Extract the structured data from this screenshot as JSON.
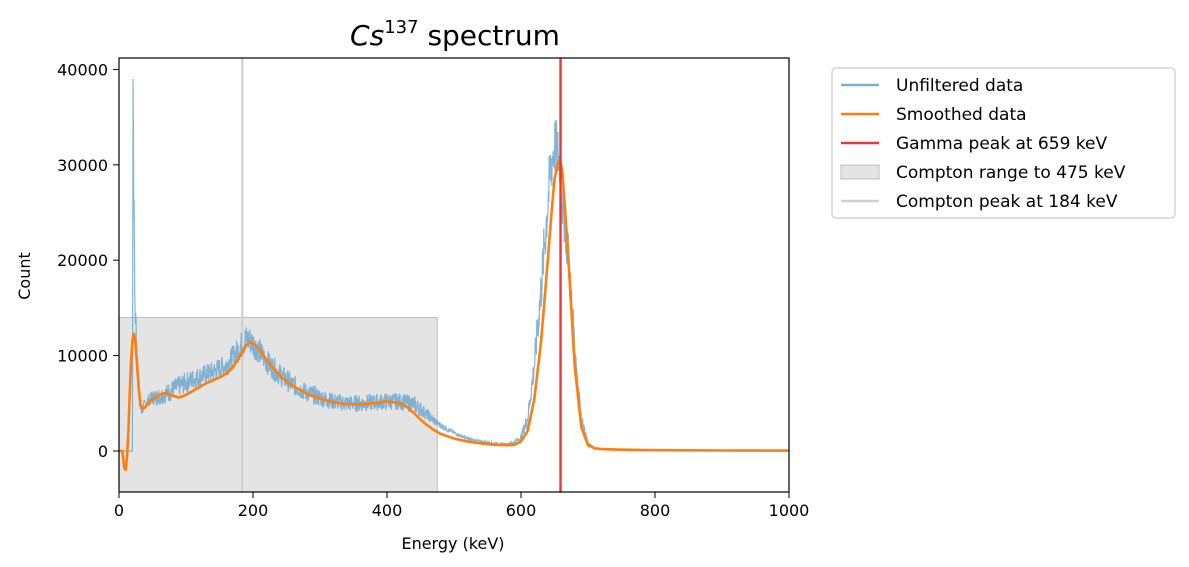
{
  "chart_data": {
    "type": "line",
    "title": {
      "main": "Cs",
      "superscript": "137",
      "rest": " spectrum"
    },
    "xlabel": "Energy (keV)",
    "ylabel": "Count",
    "xlim": [
      0,
      1000
    ],
    "ylim": [
      -4300,
      41200
    ],
    "xticks": [
      0,
      200,
      400,
      600,
      800,
      1000
    ],
    "xtick_labels": [
      "0",
      "200",
      "400",
      "600",
      "800",
      "1000"
    ],
    "yticks": [
      0,
      10000,
      20000,
      30000,
      40000
    ],
    "ytick_labels": [
      "0",
      "10000",
      "20000",
      "30000",
      "40000"
    ],
    "grid": false,
    "legend_position": "outside-right",
    "colors": {
      "unfiltered": "#7fb1cf",
      "unfiltered_band": "#6fa7cf",
      "smoothed": "#ff7f0e",
      "gamma": "#e8373a",
      "compton_range": "#d9d9d9",
      "compton_peak": "#cfcfcf"
    },
    "series": [
      {
        "name": "Unfiltered data",
        "style": "noisy",
        "x": [
          0,
          5,
          10,
          15,
          18,
          20,
          21,
          22,
          23,
          24,
          25,
          26,
          27,
          28,
          29,
          30,
          31,
          32,
          33,
          34,
          35,
          37,
          40,
          45,
          50,
          60,
          70,
          80,
          90,
          100,
          120,
          140,
          160,
          170,
          180,
          185,
          190,
          195,
          200,
          210,
          220,
          240,
          260,
          280,
          300,
          320,
          340,
          360,
          380,
          400,
          420,
          440,
          450,
          460,
          475,
          500,
          520,
          540,
          560,
          580,
          590,
          600,
          610,
          620,
          630,
          640,
          645,
          650,
          655,
          658,
          660,
          662,
          665,
          670,
          675,
          680,
          690,
          700,
          710,
          720,
          740,
          780,
          850,
          900,
          1000
        ],
        "y": [
          0,
          0,
          0,
          0,
          0,
          0,
          39000,
          26000,
          22000,
          14000,
          13500,
          12000,
          10000,
          8000,
          6500,
          5200,
          4800,
          4500,
          4300,
          4250,
          4400,
          4700,
          5000,
          5400,
          5600,
          5700,
          6000,
          6400,
          6800,
          7200,
          7800,
          8300,
          9000,
          9800,
          10800,
          11400,
          11700,
          11600,
          11300,
          10400,
          9400,
          8000,
          6900,
          6100,
          5600,
          5200,
          5000,
          5000,
          5100,
          5200,
          5200,
          4900,
          4400,
          3800,
          2900,
          1900,
          1300,
          1000,
          800,
          700,
          900,
          1400,
          3500,
          9000,
          17000,
          26000,
          30000,
          32000,
          31000,
          30000,
          28000,
          26000,
          24500,
          21000,
          16000,
          11000,
          3500,
          800,
          300,
          220,
          200,
          150,
          100,
          80,
          50
        ],
        "noise": [
          0,
          0,
          0,
          0,
          0,
          0,
          0,
          3000,
          3000,
          2500,
          1800,
          1400,
          1200,
          900,
          700,
          600,
          600,
          600,
          600,
          600,
          600,
          600,
          600,
          700,
          800,
          900,
          1000,
          1100,
          1100,
          1100,
          1100,
          1100,
          1200,
          1300,
          1400,
          1600,
          1600,
          1600,
          1500,
          1400,
          1300,
          1200,
          1100,
          1000,
          1000,
          900,
          900,
          900,
          900,
          900,
          900,
          900,
          800,
          600,
          400,
          200,
          150,
          100,
          100,
          100,
          200,
          400,
          800,
          1600,
          2600,
          3200,
          3400,
          3400,
          3300,
          3200,
          3100,
          3000,
          3000,
          2800,
          2400,
          1600,
          500,
          150,
          60,
          50,
          40,
          30,
          20,
          20,
          20
        ]
      },
      {
        "name": "Smoothed data",
        "style": "smooth",
        "x": [
          0,
          5,
          8,
          10,
          12,
          14,
          16,
          18,
          20,
          22,
          24,
          26,
          28,
          30,
          32,
          34,
          36,
          40,
          45,
          50,
          55,
          60,
          70,
          80,
          90,
          100,
          110,
          120,
          130,
          140,
          150,
          160,
          170,
          175,
          180,
          185,
          190,
          195,
          200,
          205,
          210,
          220,
          230,
          240,
          260,
          280,
          300,
          320,
          340,
          360,
          380,
          400,
          420,
          430,
          440,
          450,
          460,
          470,
          480,
          500,
          520,
          540,
          560,
          580,
          590,
          600,
          610,
          620,
          630,
          640,
          645,
          650,
          655,
          658,
          660,
          662,
          665,
          670,
          675,
          680,
          690,
          700,
          710,
          720,
          740,
          780,
          850,
          900,
          1000
        ],
        "y": [
          0,
          0,
          -1800,
          -2000,
          -500,
          2000,
          6000,
          9500,
          11500,
          12300,
          11800,
          10000,
          8000,
          6200,
          5000,
          4500,
          4400,
          4700,
          5100,
          5400,
          5600,
          5900,
          6100,
          5800,
          5600,
          5900,
          6300,
          6700,
          7100,
          7400,
          7700,
          8100,
          8800,
          9300,
          9900,
          10500,
          11100,
          11400,
          11300,
          11000,
          10600,
          9600,
          8700,
          7900,
          6800,
          6000,
          5500,
          5100,
          4900,
          4900,
          5000,
          5200,
          5000,
          4600,
          4000,
          3300,
          2700,
          2200,
          1800,
          1300,
          1000,
          800,
          650,
          600,
          650,
          1000,
          2100,
          5500,
          11500,
          20000,
          24500,
          28500,
          30200,
          30400,
          30000,
          29000,
          26000,
          21000,
          15000,
          9000,
          2500,
          600,
          280,
          200,
          150,
          100,
          70,
          50,
          40
        ]
      }
    ],
    "vertical_lines": [
      {
        "name": "Gamma peak at 659 keV",
        "x": 659
      },
      {
        "name": "Compton peak at 184 keV",
        "x": 184
      }
    ],
    "shaded_regions": [
      {
        "name": "Compton range to 475 keV",
        "x0": 0,
        "x1": 475,
        "y0": -4300,
        "y1": 14000
      }
    ],
    "legend": [
      {
        "label": "Unfiltered data",
        "kind": "line",
        "color_key": "unfiltered"
      },
      {
        "label": "Smoothed data",
        "kind": "line",
        "color_key": "smoothed"
      },
      {
        "label": "Gamma peak at 659 keV",
        "kind": "line",
        "color_key": "gamma"
      },
      {
        "label": "Compton range to 475 keV",
        "kind": "patch",
        "color_key": "compton_range"
      },
      {
        "label": "Compton peak at 184 keV",
        "kind": "line",
        "color_key": "compton_peak"
      }
    ]
  }
}
